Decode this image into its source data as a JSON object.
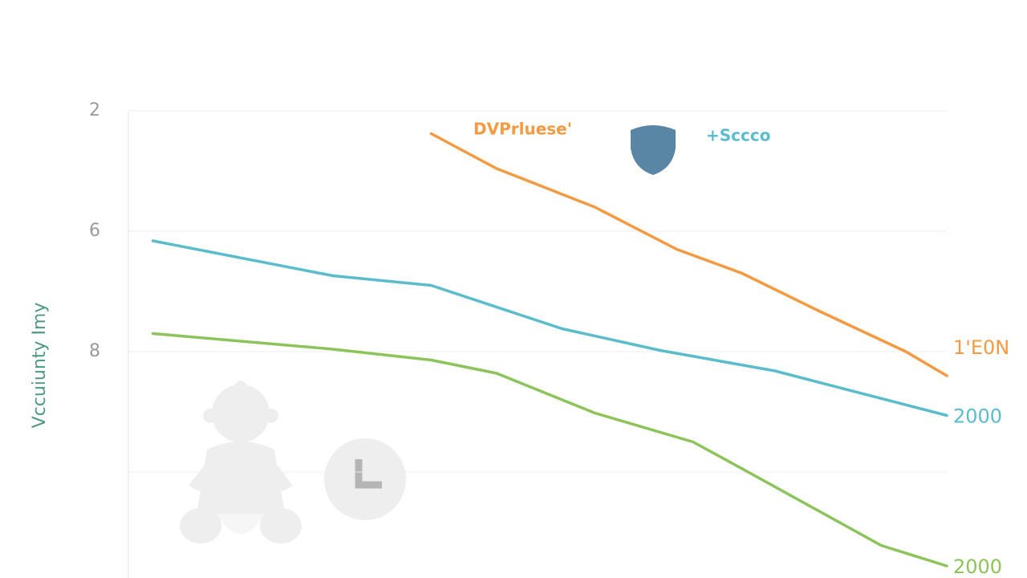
{
  "chart_data": {
    "type": "line",
    "y_label": "Vccuiunty Imy",
    "xlim": [
      0,
      100
    ],
    "ylim": [
      0.2,
      4
    ],
    "yticks": [
      {
        "value": 4,
        "label": "2"
      },
      {
        "value": 3,
        "label": "6"
      },
      {
        "value": 2,
        "label": "8"
      },
      {
        "value": 1,
        "label": null
      }
    ],
    "grid": true,
    "series": [
      {
        "name": "DVPrluese'",
        "color": "#f39a43",
        "label": "1'E0N",
        "x": [
          37,
          45,
          57,
          67,
          75,
          84,
          95,
          100
        ],
        "values": [
          3.81,
          3.52,
          3.2,
          2.85,
          2.65,
          2.35,
          2.0,
          1.8
        ]
      },
      {
        "name": "+Sccco",
        "color": "#5bbccb",
        "label": "2000",
        "x": [
          3,
          25,
          37,
          53,
          65,
          79,
          100
        ],
        "values": [
          2.92,
          2.63,
          2.55,
          2.19,
          2.01,
          1.84,
          1.47
        ]
      },
      {
        "color": "#8cc35a",
        "label": "2000",
        "x": [
          3,
          25,
          37,
          45,
          57,
          69,
          76,
          92,
          100
        ],
        "values": [
          2.15,
          2.02,
          1.93,
          1.82,
          1.49,
          1.25,
          0.99,
          0.39,
          0.22
        ]
      }
    ]
  }
}
